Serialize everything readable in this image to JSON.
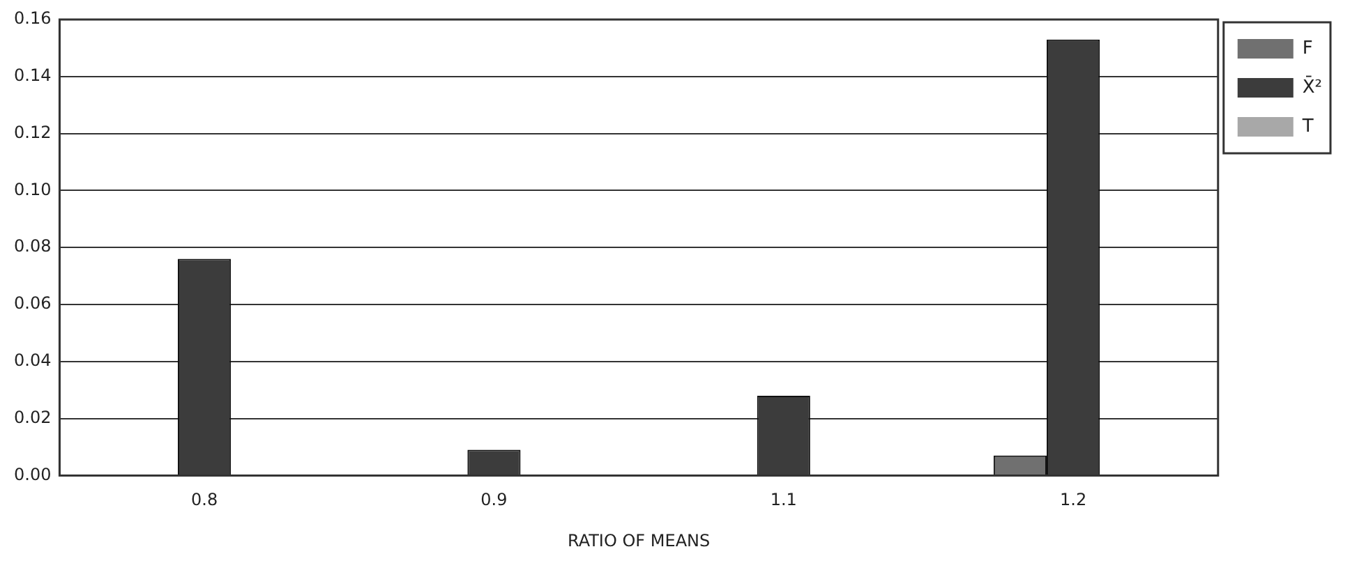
{
  "chart_data": {
    "type": "bar",
    "xlabel": "RATIO OF MEANS",
    "categories": [
      "0.8",
      "0.9",
      "1.1",
      "1.2"
    ],
    "series": [
      {
        "name": "F",
        "color": "#707070",
        "values": [
          0,
          0,
          0,
          0.007
        ]
      },
      {
        "name": "X̄²",
        "color": "#3c3c3c",
        "values": [
          0.076,
          0.009,
          0.028,
          0.153
        ]
      },
      {
        "name": "T",
        "color": "#a8a8a8",
        "values": [
          0,
          0,
          0,
          0
        ]
      }
    ],
    "ylim": [
      0,
      0.16
    ],
    "yticks": [
      {
        "value": 0,
        "label": "0.00"
      },
      {
        "value": 0.02,
        "label": "0.02"
      },
      {
        "value": 0.04,
        "label": "0.04"
      },
      {
        "value": 0.06,
        "label": "0.06"
      },
      {
        "value": 0.08,
        "label": "0.08"
      },
      {
        "value": 0.1,
        "label": "0.10"
      },
      {
        "value": 0.12,
        "label": "0.12"
      },
      {
        "value": 0.14,
        "label": "0.14"
      },
      {
        "value": 0.16,
        "label": "0.16"
      }
    ],
    "grid": "y",
    "legend": "top right"
  }
}
